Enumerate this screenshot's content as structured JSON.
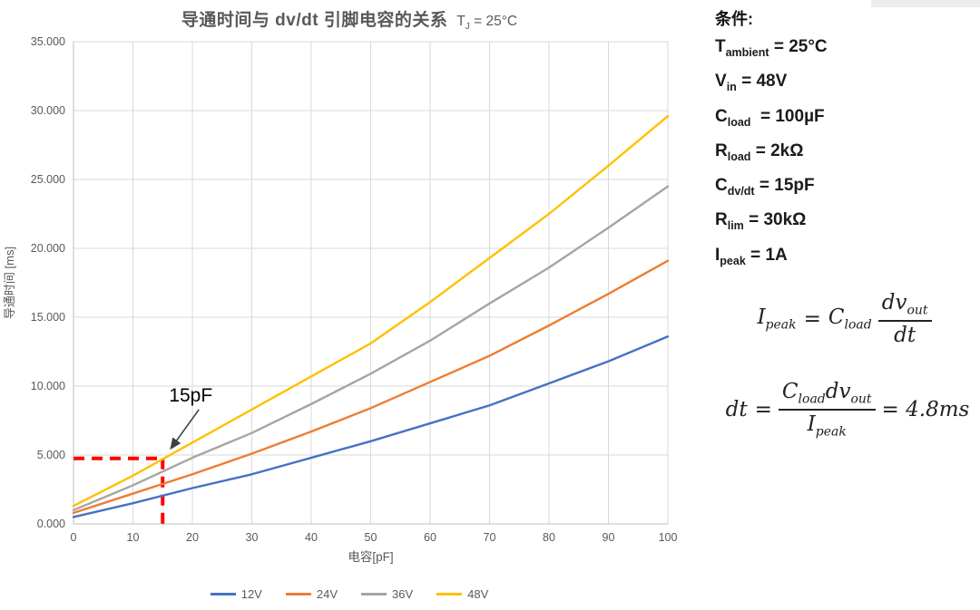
{
  "chart_data": {
    "type": "line",
    "title": "导通时间与 dv/dt 引脚电容的关系",
    "title_suffix": {
      "sym": "T",
      "sub": "J",
      "rest": " = 25°C"
    },
    "xlabel": "电容[pF]",
    "ylabel": "导通时间 [ms]",
    "xlim": [
      0,
      100
    ],
    "ylim": [
      0,
      35
    ],
    "grid": true,
    "legend_position": "bottom",
    "x_ticks": [
      0,
      10,
      20,
      30,
      40,
      50,
      60,
      70,
      80,
      90,
      100
    ],
    "y_ticks": [
      0,
      5,
      10,
      15,
      20,
      25,
      30,
      35
    ],
    "y_tick_labels": [
      "0.000",
      "5.000",
      "10.000",
      "15.000",
      "20.000",
      "25.000",
      "30.000",
      "35.000"
    ],
    "x": [
      0,
      10,
      20,
      30,
      40,
      50,
      60,
      70,
      80,
      90,
      100
    ],
    "series": [
      {
        "name": "12V",
        "color": "#4472C4",
        "values": [
          0.5,
          1.5,
          2.6,
          3.6,
          4.8,
          6.0,
          7.3,
          8.6,
          10.2,
          11.8,
          13.6
        ]
      },
      {
        "name": "24V",
        "color": "#ED7D31",
        "values": [
          0.8,
          2.2,
          3.6,
          5.1,
          6.7,
          8.4,
          10.3,
          12.2,
          14.4,
          16.7,
          19.1
        ]
      },
      {
        "name": "36V",
        "color": "#A5A5A5",
        "values": [
          1.0,
          2.8,
          4.8,
          6.6,
          8.7,
          10.9,
          13.3,
          16.0,
          18.6,
          21.5,
          24.5
        ]
      },
      {
        "name": "48V",
        "color": "#FFC000",
        "values": [
          1.3,
          3.5,
          5.9,
          8.3,
          10.7,
          13.1,
          16.1,
          19.3,
          22.5,
          26.0,
          29.6
        ]
      }
    ],
    "annotation": {
      "label": "15pF"
    },
    "guide": {
      "x": 15,
      "y": 4.75,
      "color": "#FF0000"
    }
  },
  "colors": {
    "grid": "#D9D9D9",
    "axis": "#BFBFBF",
    "tick_text": "#595959",
    "title_text": "#595959",
    "annotation_text": "#000000",
    "guide_red": "#FF0000"
  },
  "conditions": {
    "title": "条件:",
    "items": [
      {
        "sym": "T",
        "sub": "ambient",
        "rest": " = 25°C"
      },
      {
        "sym": "V",
        "sub": "in",
        "rest": " = 48V"
      },
      {
        "sym": "C",
        "sub": "load",
        "rest": "  = 100µF"
      },
      {
        "sym": "R",
        "sub": "load",
        "rest": " = 2kΩ"
      },
      {
        "sym": "C",
        "sub": "dv/dt",
        "rest": " = 15pF"
      },
      {
        "sym": "R",
        "sub": "lim",
        "rest": " = 30kΩ"
      },
      {
        "sym": "I",
        "sub": "peak",
        "rest": " = 1A"
      }
    ]
  },
  "formulas": {
    "f1": {
      "lhs_sym": "I",
      "lhs_sub": "peak",
      "eq": "=",
      "coef_sym": "C",
      "coef_sub": "load",
      "num_sym": "dv",
      "num_sub": "out",
      "den": "dt"
    },
    "f2": {
      "lhs": "dt",
      "eq": "=",
      "num1_sym": "C",
      "num1_sub": "load",
      "num2_sym": "dv",
      "num2_sub": "out",
      "den_sym": "I",
      "den_sub": "peak",
      "result": "= 4.8ms"
    }
  }
}
